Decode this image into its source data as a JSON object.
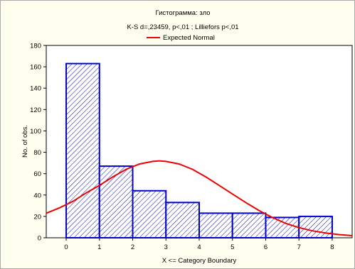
{
  "chart_data": {
    "type": "bar",
    "title": "Гистограмма: зло",
    "subtitle": "K-S d=,23459, p<,01 ; Lilliefors p<,01",
    "legend": [
      {
        "label": "Expected Normal",
        "color": "#ee0000"
      }
    ],
    "legend_position": "top-center",
    "xlabel": "X <= Category Boundary",
    "ylabel": "No. of obs.",
    "xlim": [
      -0.6,
      8.6
    ],
    "ylim": [
      0,
      180
    ],
    "x_ticks": [
      0,
      1,
      2,
      3,
      4,
      5,
      6,
      7,
      8
    ],
    "y_ticks": [
      0,
      20,
      40,
      60,
      80,
      100,
      120,
      140,
      160,
      180
    ],
    "grid": false,
    "bins": [
      {
        "from": 0,
        "to": 1,
        "value": 163
      },
      {
        "from": 1,
        "to": 2,
        "value": 67
      },
      {
        "from": 2,
        "to": 3,
        "value": 44
      },
      {
        "from": 3,
        "to": 4,
        "value": 33
      },
      {
        "from": 4,
        "to": 5,
        "value": 23
      },
      {
        "from": 5,
        "to": 6,
        "value": 23
      },
      {
        "from": 6,
        "to": 7,
        "value": 19
      },
      {
        "from": 7,
        "to": 8,
        "value": 20
      }
    ],
    "series": [
      {
        "name": "Expected Normal",
        "type": "line",
        "color": "#ee0000",
        "points": [
          [
            -0.6,
            23
          ],
          [
            -0.2,
            28
          ],
          [
            0.2,
            34
          ],
          [
            0.6,
            42
          ],
          [
            1.0,
            49
          ],
          [
            1.4,
            57
          ],
          [
            1.8,
            64
          ],
          [
            2.2,
            69
          ],
          [
            2.6,
            71.5
          ],
          [
            2.8,
            72
          ],
          [
            3.0,
            71.5
          ],
          [
            3.4,
            69
          ],
          [
            3.8,
            64
          ],
          [
            4.2,
            57
          ],
          [
            4.6,
            49
          ],
          [
            5.0,
            41
          ],
          [
            5.4,
            33
          ],
          [
            5.8,
            25.5
          ],
          [
            6.2,
            19
          ],
          [
            6.6,
            13.5
          ],
          [
            7.0,
            9.5
          ],
          [
            7.4,
            6.5
          ],
          [
            7.8,
            4.5
          ],
          [
            8.2,
            3
          ],
          [
            8.6,
            2
          ]
        ]
      }
    ],
    "colors": {
      "bar_stroke": "#0000cc",
      "hatch": "#0000cc",
      "curve": "#ee0000",
      "plot_bg": "#ffffff",
      "frame_bg": "#fffff0"
    }
  }
}
